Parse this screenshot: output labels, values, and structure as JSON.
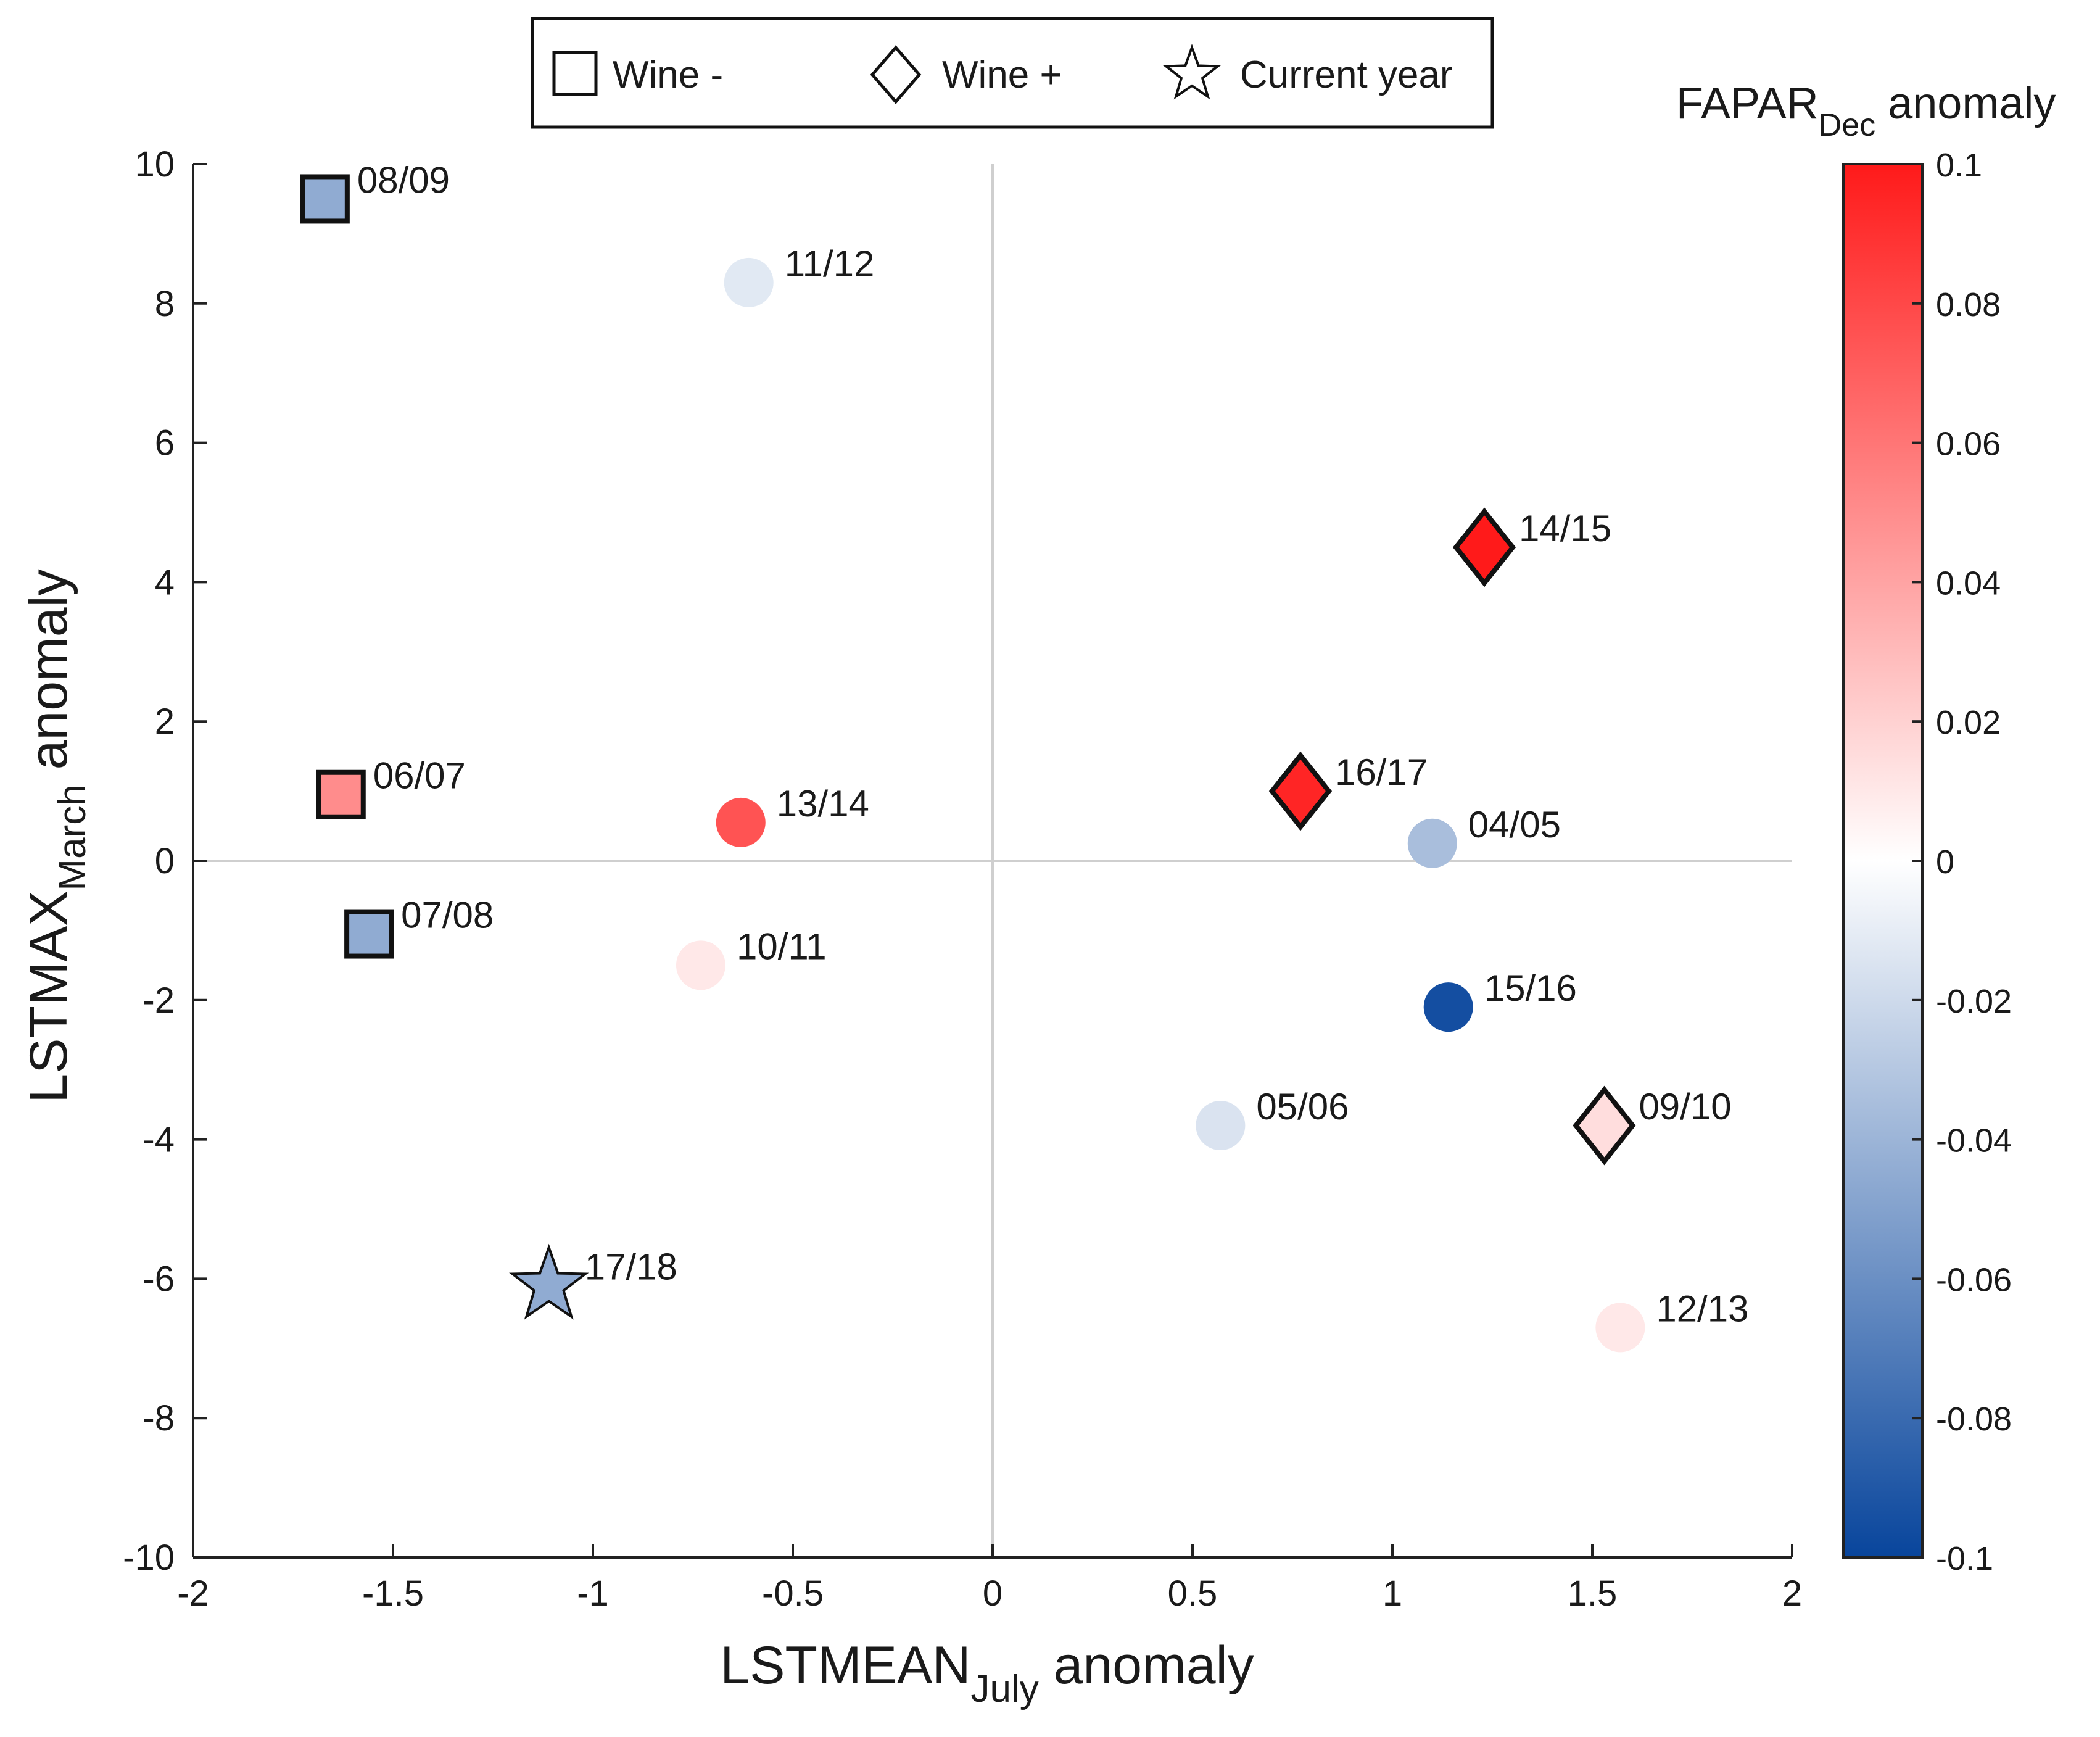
{
  "chart_data": {
    "type": "scatter",
    "title": "",
    "xlabel": {
      "main": "LSTMEAN",
      "sub": "July",
      "suffix": " anomaly"
    },
    "ylabel": {
      "main": "LSTMAX",
      "sub": "March",
      "suffix": " anomaly"
    },
    "xlim": [
      -2,
      2
    ],
    "ylim": [
      -10,
      10
    ],
    "xticks": [
      -2,
      -1.5,
      -1,
      -0.5,
      0,
      0.5,
      1,
      1.5,
      2
    ],
    "xtick_labels": [
      "-2",
      "-1.5",
      "-1",
      "-0.5",
      "0",
      "0.5",
      "1",
      "1.5",
      "2"
    ],
    "yticks": [
      10,
      8,
      6,
      4,
      2,
      0,
      -2,
      -4,
      -6,
      -8,
      -10
    ],
    "ytick_labels": [
      "10",
      "8",
      "6",
      "4",
      "2",
      "0",
      "-2",
      "-4",
      "-6",
      "-8",
      "-10"
    ],
    "zero_lines": true,
    "legend": {
      "position": "top",
      "items": [
        {
          "marker": "square",
          "label": "Wine -"
        },
        {
          "marker": "diamond",
          "label": "Wine +"
        },
        {
          "marker": "star",
          "label": "Current year"
        }
      ]
    },
    "colorbar": {
      "title_main": "FAPAR",
      "title_sub": "Dec",
      "title_suffix": " anomaly",
      "range": [
        -0.1,
        0.1
      ],
      "ticks": [
        0.1,
        0.08,
        0.06,
        0.04,
        0.02,
        0,
        -0.02,
        -0.04,
        -0.06,
        -0.08,
        -0.1
      ],
      "tick_labels": [
        "0.1",
        "0.08",
        "0.06",
        "0.04",
        "0.02",
        "0",
        "-0.02",
        "-0.04",
        "-0.06",
        "-0.08",
        "-0.1"
      ],
      "color_min": "#08459c",
      "color_mid": "#ffffff",
      "color_max": "#ff1a1a"
    },
    "points": [
      {
        "label": "08/09",
        "x": -1.67,
        "y": 9.5,
        "marker": "square",
        "fapar": -0.045
      },
      {
        "label": "11/12",
        "x": -0.61,
        "y": 8.3,
        "marker": "circle",
        "fapar": -0.012
      },
      {
        "label": "06/07",
        "x": -1.63,
        "y": 0.95,
        "marker": "square",
        "fapar": 0.05
      },
      {
        "label": "13/14",
        "x": -0.63,
        "y": 0.55,
        "marker": "circle",
        "fapar": 0.075
      },
      {
        "label": "07/08",
        "x": -1.56,
        "y": -1.05,
        "marker": "square",
        "fapar": -0.045
      },
      {
        "label": "10/11",
        "x": -0.73,
        "y": -1.5,
        "marker": "circle",
        "fapar": 0.01
      },
      {
        "label": "17/18",
        "x": -1.11,
        "y": -6.1,
        "marker": "star",
        "fapar": -0.045
      },
      {
        "label": "14/15",
        "x": 1.23,
        "y": 4.5,
        "marker": "diamond",
        "fapar": 0.1
      },
      {
        "label": "16/17",
        "x": 0.77,
        "y": 1.0,
        "marker": "diamond",
        "fapar": 0.095
      },
      {
        "label": "04/05",
        "x": 1.1,
        "y": 0.25,
        "marker": "circle",
        "fapar": -0.035
      },
      {
        "label": "15/16",
        "x": 1.14,
        "y": -2.1,
        "marker": "circle",
        "fapar": -0.095
      },
      {
        "label": "05/06",
        "x": 0.57,
        "y": -3.8,
        "marker": "circle",
        "fapar": -0.015
      },
      {
        "label": "09/10",
        "x": 1.53,
        "y": -3.8,
        "marker": "diamond",
        "fapar": 0.015
      },
      {
        "label": "12/13",
        "x": 1.57,
        "y": -6.7,
        "marker": "circle",
        "fapar": 0.01
      }
    ]
  }
}
